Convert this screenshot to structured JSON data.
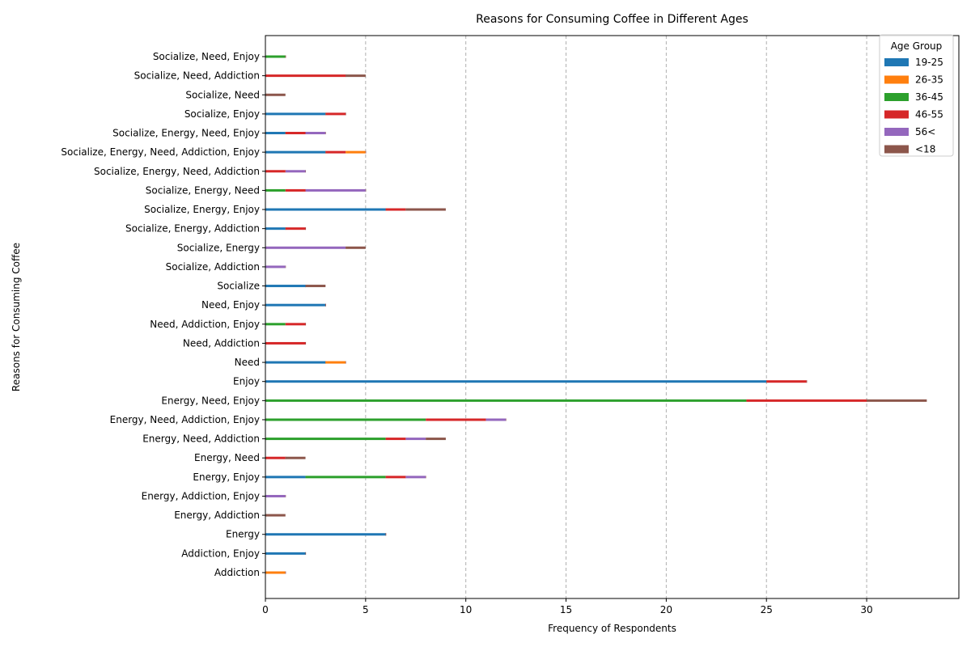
{
  "chart_data": {
    "type": "bar",
    "orientation": "horizontal",
    "stacked": true,
    "title": "Reasons for Consuming Coffee in Different Ages",
    "xlabel": "Frequency of Respondents",
    "ylabel": "Reasons for Consuming Coffee",
    "xlim": [
      0,
      34.6
    ],
    "xticks": [
      0,
      5,
      10,
      15,
      20,
      25,
      30
    ],
    "grid": "x-dashed",
    "legend_title": "Age Group",
    "legend_position": "top-right",
    "categories": [
      "Addiction",
      "Addiction, Enjoy",
      "Energy",
      "Energy, Addiction",
      "Energy, Addiction, Enjoy",
      "Energy, Enjoy",
      "Energy, Need",
      "Energy, Need, Addiction",
      "Energy, Need, Addiction, Enjoy",
      "Energy, Need, Enjoy",
      "Enjoy",
      "Need",
      "Need, Addiction",
      "Need, Addiction, Enjoy",
      "Need, Enjoy",
      "Socialize",
      "Socialize, Addiction",
      "Socialize, Energy",
      "Socialize, Energy, Addiction",
      "Socialize, Energy, Enjoy",
      "Socialize, Energy, Need",
      "Socialize, Energy, Need, Addiction",
      "Socialize, Energy, Need, Addiction, Enjoy",
      "Socialize, Energy, Need, Enjoy",
      "Socialize, Enjoy",
      "Socialize, Need",
      "Socialize, Need, Addiction",
      "Socialize, Need, Enjoy"
    ],
    "series": [
      {
        "name": "19-25",
        "color": "#1f77b4",
        "values": [
          0,
          2,
          6,
          0,
          0,
          2,
          0,
          0,
          0,
          0,
          25,
          3,
          0,
          0,
          3,
          2,
          0,
          0,
          1,
          6,
          0,
          0,
          3,
          1,
          3,
          0,
          0,
          0
        ]
      },
      {
        "name": "26-35",
        "color": "#ff7f0e",
        "values": [
          1,
          0,
          0,
          0,
          0,
          0,
          0,
          0,
          0,
          0,
          0,
          1,
          0,
          0,
          0,
          0,
          0,
          0,
          0,
          0,
          0,
          0,
          1,
          0,
          0,
          0,
          0,
          0
        ]
      },
      {
        "name": "36-45",
        "color": "#2ca02c",
        "values": [
          0,
          0,
          0,
          0,
          0,
          4,
          0,
          6,
          8,
          24,
          0,
          0,
          0,
          1,
          0,
          0,
          0,
          0,
          0,
          0,
          1,
          0,
          0,
          0,
          0,
          0,
          0,
          1
        ]
      },
      {
        "name": "46-55",
        "color": "#d62728",
        "values": [
          0,
          0,
          0,
          0,
          0,
          1,
          1,
          1,
          3,
          6,
          2,
          0,
          2,
          1,
          0,
          0,
          0,
          0,
          1,
          1,
          1,
          1,
          1,
          1,
          1,
          0,
          4,
          0
        ]
      },
      {
        "name": "56<",
        "color": "#9467bd",
        "values": [
          0,
          0,
          0,
          0,
          1,
          1,
          0,
          1,
          1,
          0,
          0,
          0,
          0,
          0,
          0,
          0,
          1,
          4,
          0,
          0,
          3,
          1,
          0,
          1,
          0,
          0,
          0,
          0
        ]
      },
      {
        "name": "<18",
        "color": "#8c564b",
        "values": [
          0,
          0,
          0,
          1,
          0,
          0,
          1,
          1,
          0,
          3,
          0,
          0,
          0,
          0,
          0,
          1,
          0,
          1,
          0,
          2,
          0,
          0,
          0,
          0,
          0,
          1,
          1,
          0
        ]
      }
    ],
    "draw_order": [
      "19-25",
      "36-45",
      "46-55",
      "26-35",
      "56<",
      "<18"
    ]
  }
}
